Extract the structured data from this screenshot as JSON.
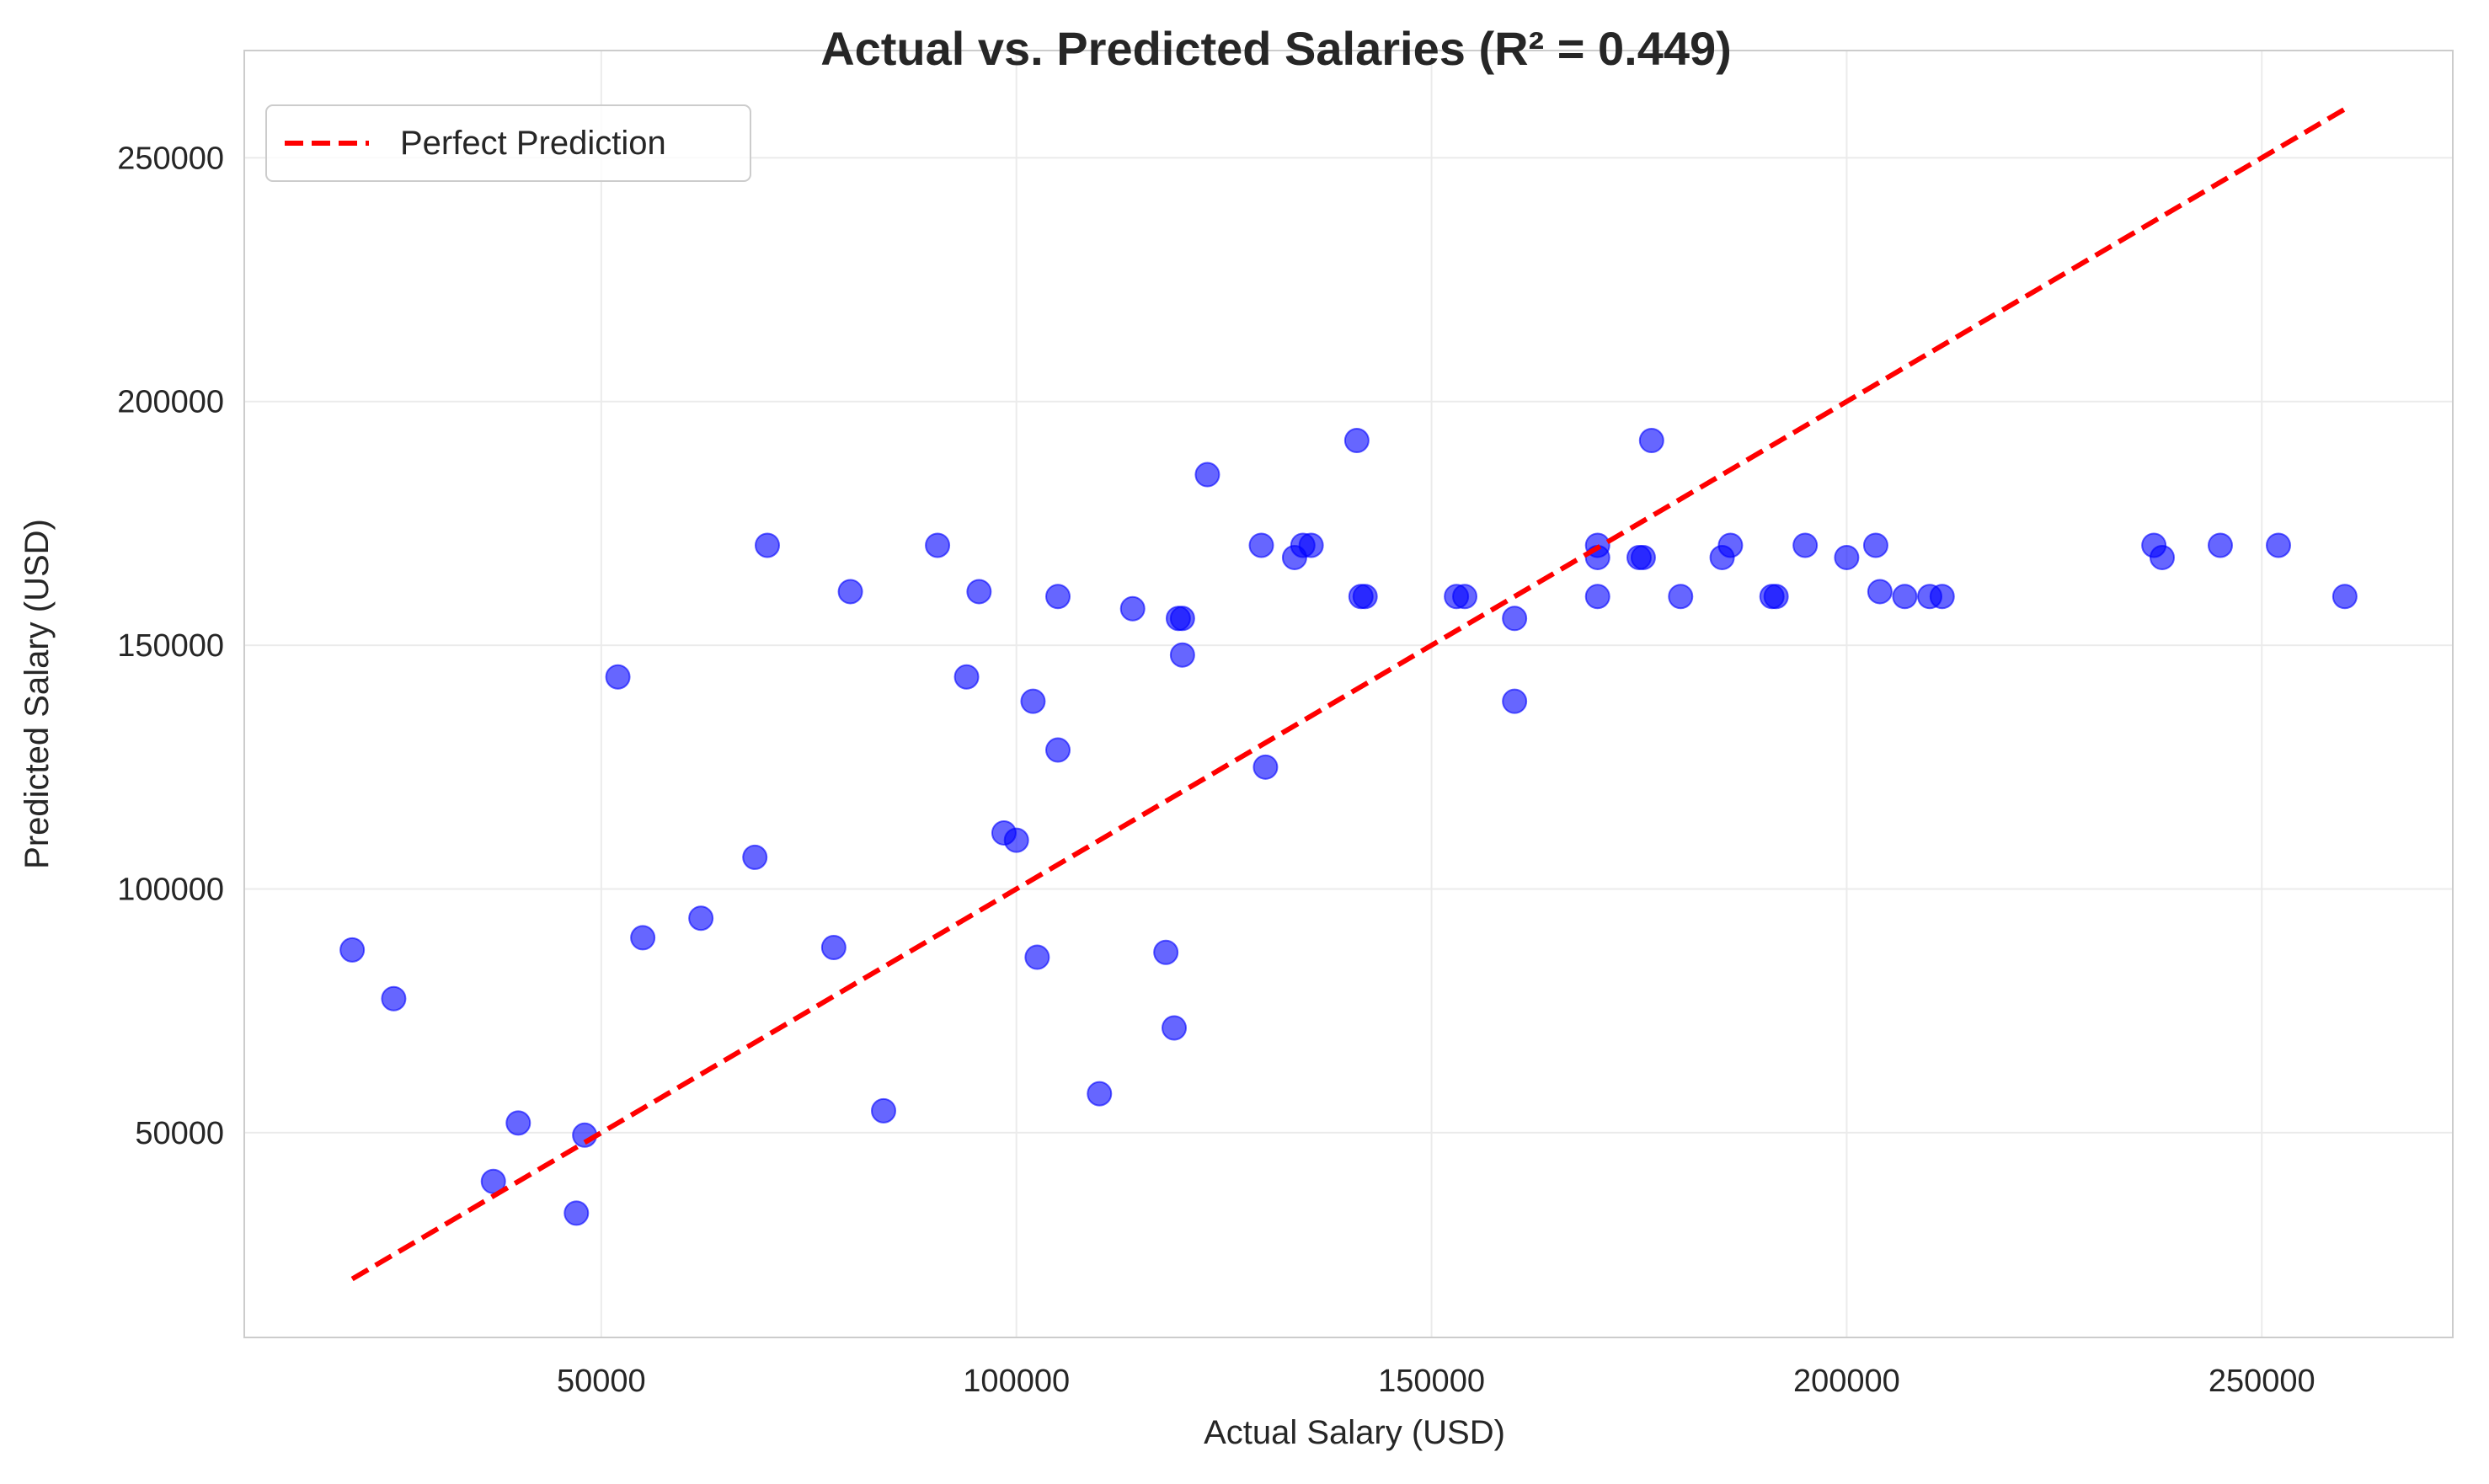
{
  "chart_data": {
    "type": "scatter",
    "title": "Actual vs. Predicted Salaries (R² = 0.449)",
    "xlabel": "Actual Salary (USD)",
    "ylabel": "Predicted Salary (USD)",
    "xlim": [
      7000,
      273000
    ],
    "ylim": [
      8000,
      272000
    ],
    "xticks": [
      50000,
      100000,
      150000,
      200000,
      250000
    ],
    "yticks": [
      50000,
      100000,
      150000,
      200000,
      250000
    ],
    "grid": true,
    "legend": {
      "position": "top-left",
      "entries": [
        "Perfect Prediction"
      ]
    },
    "series": [
      {
        "name": "",
        "kind": "scatter",
        "color": "#0000ff",
        "opacity": 0.6,
        "points": [
          {
            "x": 20000,
            "y": 87500
          },
          {
            "x": 25000,
            "y": 77500
          },
          {
            "x": 37000,
            "y": 40000
          },
          {
            "x": 40000,
            "y": 52000
          },
          {
            "x": 47000,
            "y": 33500
          },
          {
            "x": 48000,
            "y": 49500
          },
          {
            "x": 52000,
            "y": 143500
          },
          {
            "x": 55000,
            "y": 90000
          },
          {
            "x": 62000,
            "y": 94000
          },
          {
            "x": 68500,
            "y": 106500
          },
          {
            "x": 70000,
            "y": 170500
          },
          {
            "x": 78000,
            "y": 88000
          },
          {
            "x": 80000,
            "y": 161000
          },
          {
            "x": 84000,
            "y": 54500
          },
          {
            "x": 90500,
            "y": 170500
          },
          {
            "x": 94000,
            "y": 143500
          },
          {
            "x": 95500,
            "y": 161000
          },
          {
            "x": 98500,
            "y": 111500
          },
          {
            "x": 100000,
            "y": 110000
          },
          {
            "x": 102000,
            "y": 138500
          },
          {
            "x": 102500,
            "y": 86000
          },
          {
            "x": 105000,
            "y": 160000
          },
          {
            "x": 105000,
            "y": 128500
          },
          {
            "x": 110000,
            "y": 58000
          },
          {
            "x": 114000,
            "y": 157500
          },
          {
            "x": 118000,
            "y": 87000
          },
          {
            "x": 119000,
            "y": 71500
          },
          {
            "x": 119500,
            "y": 155500
          },
          {
            "x": 120000,
            "y": 148000
          },
          {
            "x": 120000,
            "y": 155500
          },
          {
            "x": 123000,
            "y": 185000
          },
          {
            "x": 129500,
            "y": 170500
          },
          {
            "x": 130000,
            "y": 125000
          },
          {
            "x": 133500,
            "y": 168000
          },
          {
            "x": 134500,
            "y": 170500
          },
          {
            "x": 135500,
            "y": 170500
          },
          {
            "x": 141000,
            "y": 192000
          },
          {
            "x": 141500,
            "y": 160000
          },
          {
            "x": 142000,
            "y": 160000
          },
          {
            "x": 153000,
            "y": 160000
          },
          {
            "x": 154000,
            "y": 160000
          },
          {
            "x": 160000,
            "y": 155500
          },
          {
            "x": 160000,
            "y": 138500
          },
          {
            "x": 170000,
            "y": 170500
          },
          {
            "x": 170000,
            "y": 168000
          },
          {
            "x": 170000,
            "y": 160000
          },
          {
            "x": 175000,
            "y": 168000
          },
          {
            "x": 175500,
            "y": 168000
          },
          {
            "x": 176500,
            "y": 192000
          },
          {
            "x": 180000,
            "y": 160000
          },
          {
            "x": 185000,
            "y": 168000
          },
          {
            "x": 186000,
            "y": 170500
          },
          {
            "x": 191000,
            "y": 160000
          },
          {
            "x": 191500,
            "y": 160000
          },
          {
            "x": 195000,
            "y": 170500
          },
          {
            "x": 200000,
            "y": 168000
          },
          {
            "x": 203500,
            "y": 170500
          },
          {
            "x": 204000,
            "y": 161000
          },
          {
            "x": 207000,
            "y": 160000
          },
          {
            "x": 210000,
            "y": 160000
          },
          {
            "x": 211500,
            "y": 160000
          },
          {
            "x": 237000,
            "y": 170500
          },
          {
            "x": 238000,
            "y": 168000
          },
          {
            "x": 245000,
            "y": 170500
          },
          {
            "x": 252000,
            "y": 170500
          },
          {
            "x": 260000,
            "y": 160000
          }
        ]
      },
      {
        "name": "Perfect Prediction",
        "kind": "line",
        "style": "dashed",
        "color": "#ff0000",
        "x": [
          20000,
          260000
        ],
        "y": [
          20000,
          260000
        ]
      }
    ]
  }
}
